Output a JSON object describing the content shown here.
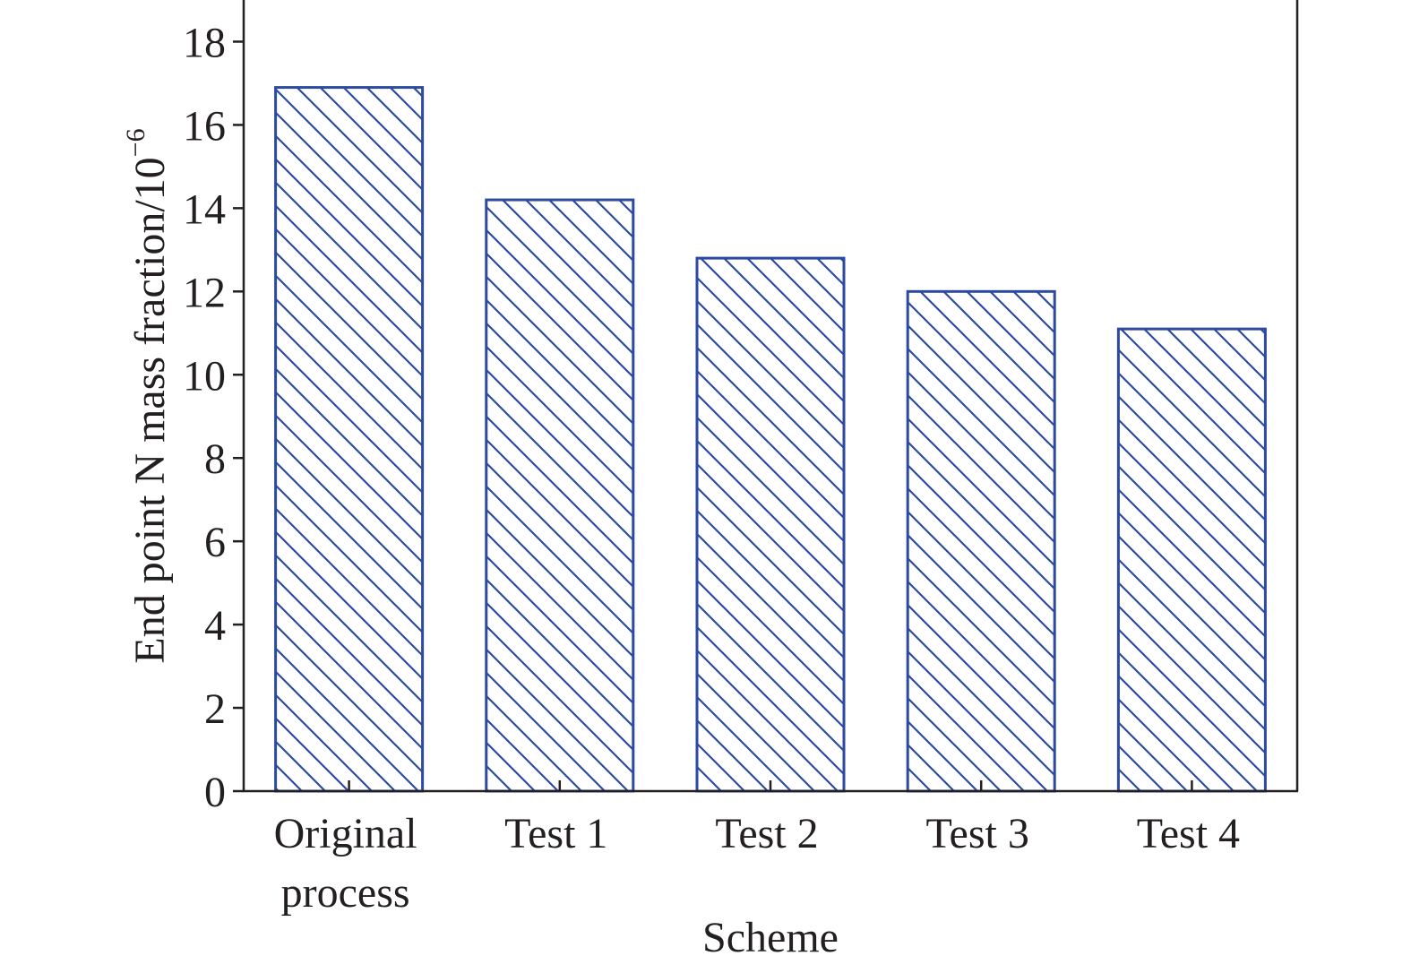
{
  "chart_data": {
    "type": "bar",
    "categories": [
      [
        "Original",
        "process"
      ],
      [
        "Test 1"
      ],
      [
        "Test 2"
      ],
      [
        "Test 3"
      ],
      [
        "Test 4"
      ]
    ],
    "values": [
      16.9,
      14.2,
      12.8,
      12.0,
      11.1
    ],
    "xlabel": "Scheme",
    "ylabel": "End point N mass fraction/10",
    "ylabel_superscript": "−6",
    "ylim": [
      0,
      19
    ],
    "yticks": [
      "0",
      "2",
      "4",
      "6",
      "8",
      "10",
      "12",
      "14",
      "16",
      "18"
    ],
    "bar_fill": "hatched",
    "bar_color": "#2b4aa0",
    "axis_color": "#231f20",
    "grid": false,
    "legend": "none"
  }
}
